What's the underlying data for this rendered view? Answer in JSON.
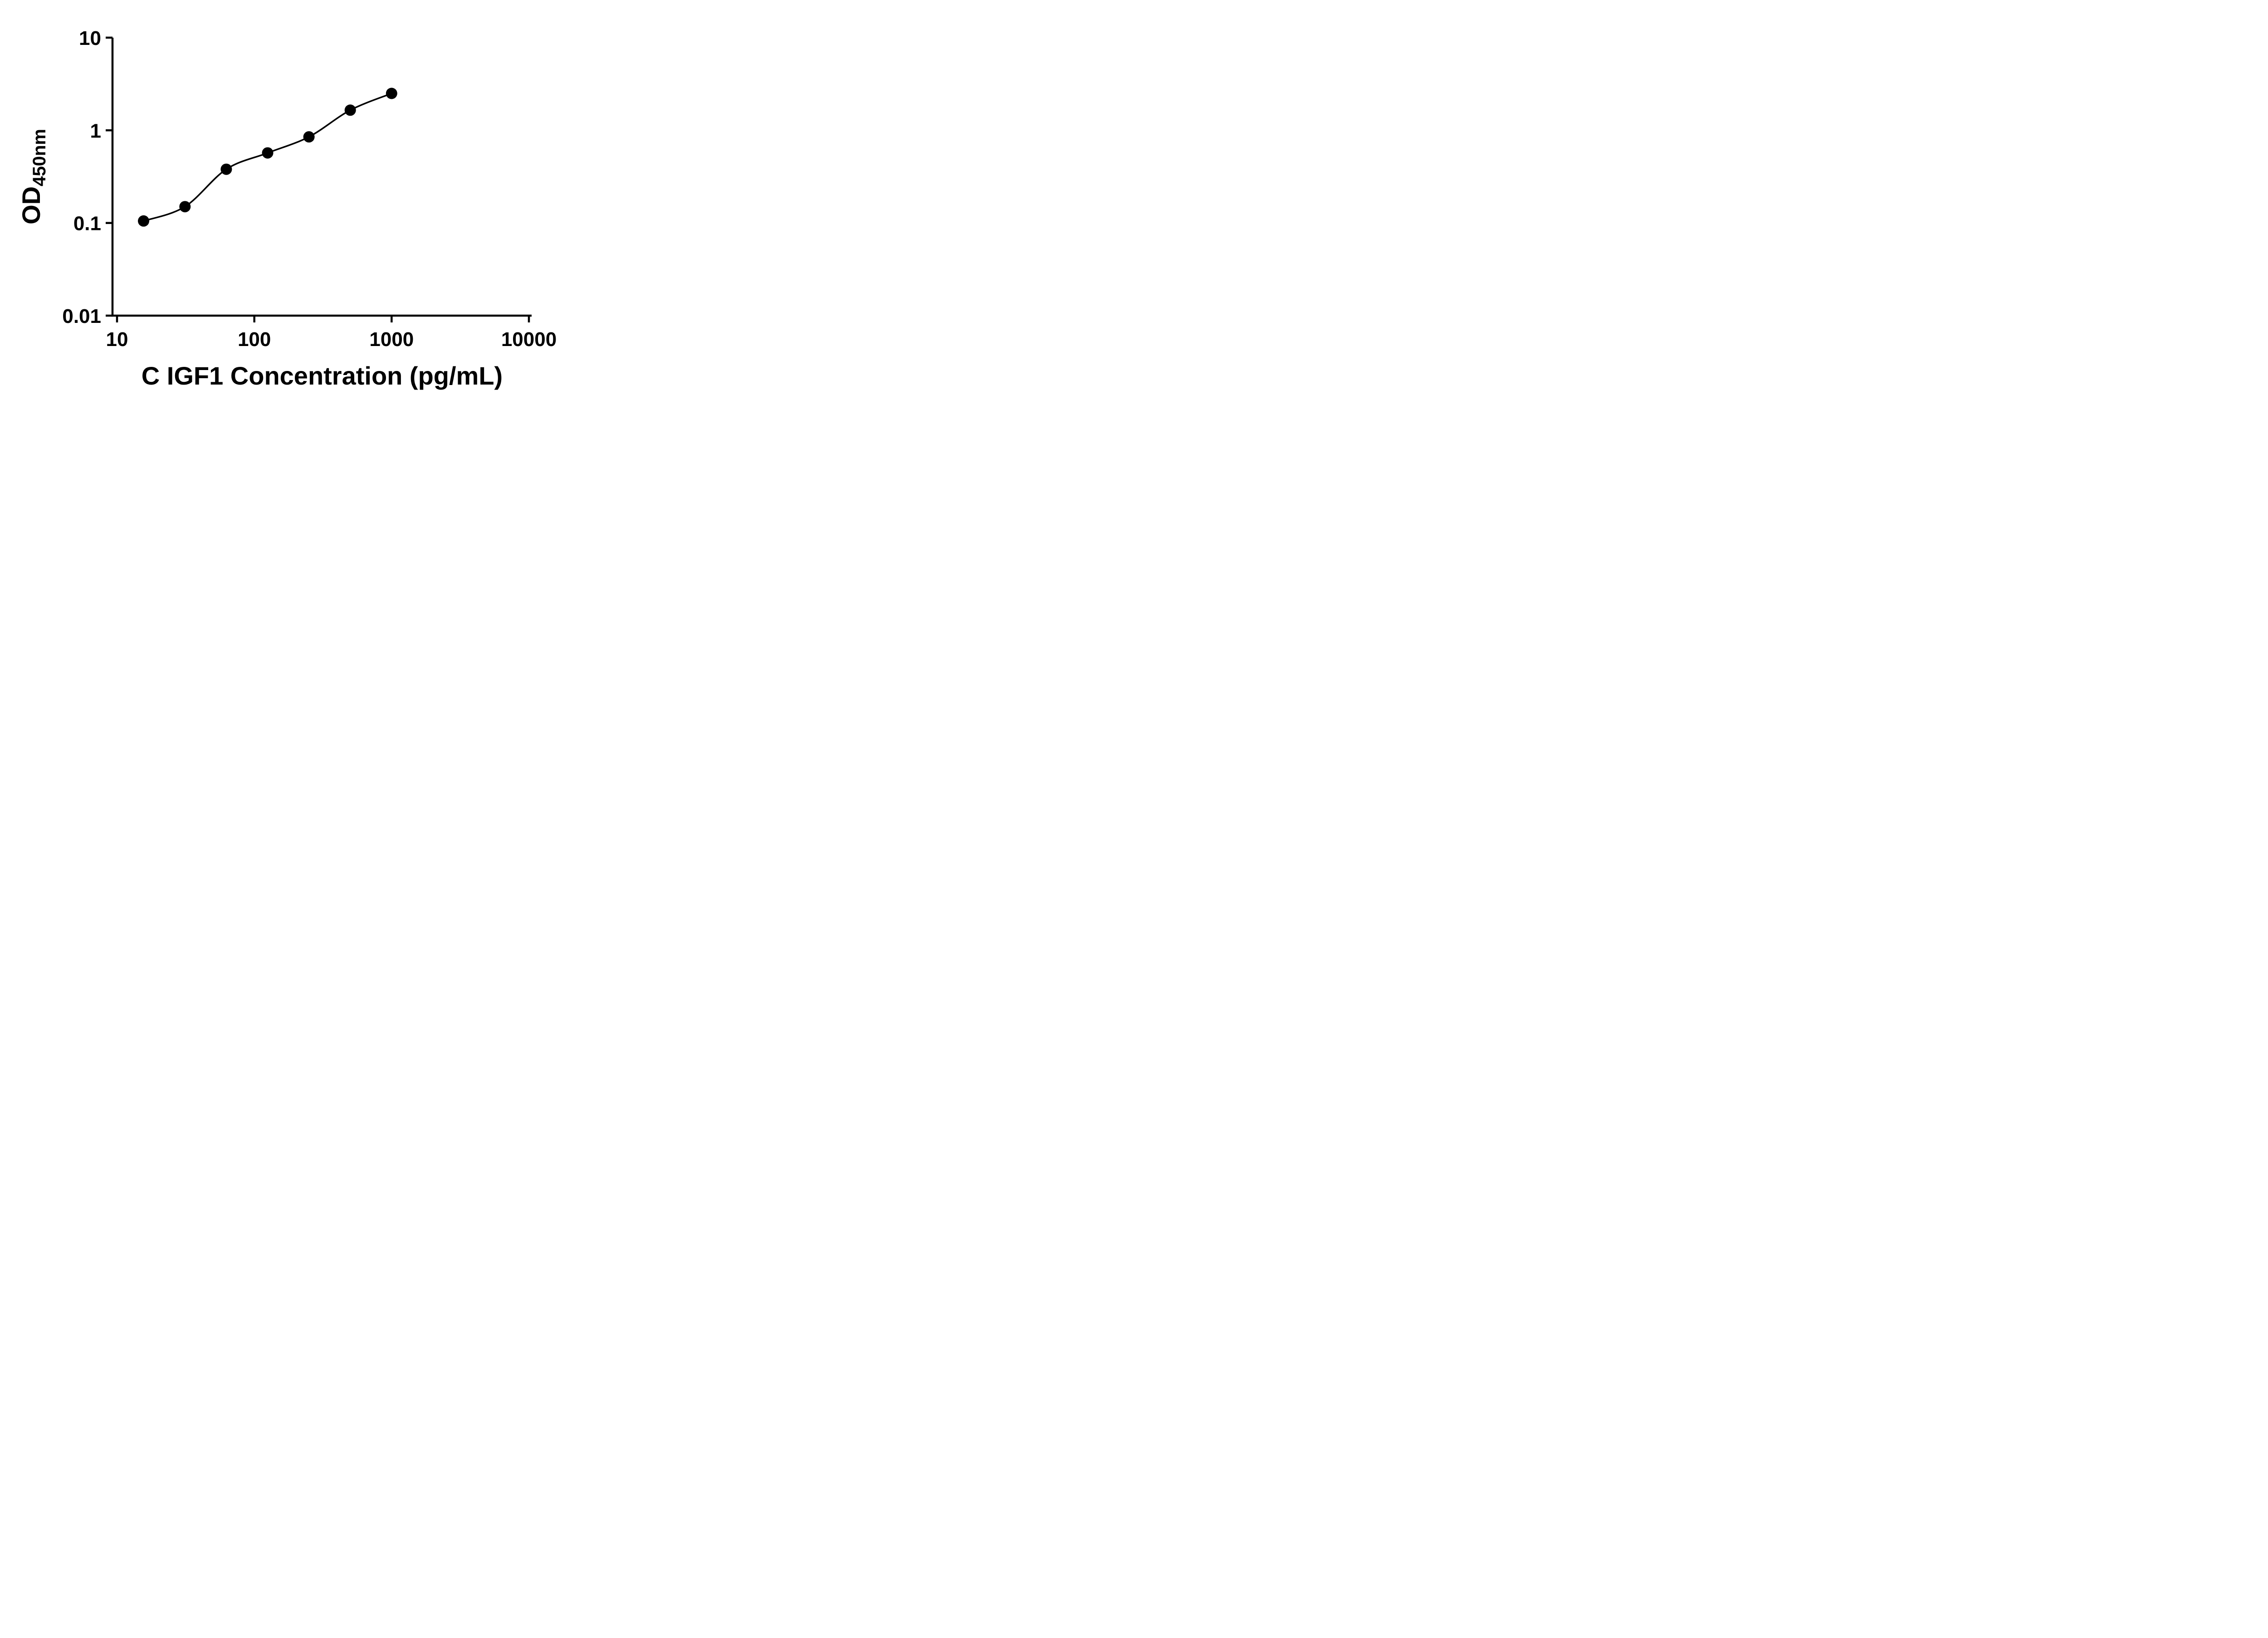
{
  "figure": {
    "background_color": "#ffffff",
    "ink_color": "#000000"
  },
  "chart_data": {
    "type": "scatter",
    "title": "",
    "xlabel": "C IGF1 Concentration (pg/mL)",
    "ylabel": {
      "text": "OD",
      "subscript": "450nm"
    },
    "x_scale": "log",
    "y_scale": "log",
    "xlim": [
      10,
      10000
    ],
    "ylim": [
      0.01,
      10
    ],
    "x_ticks": [
      {
        "value": 10,
        "label": "10"
      },
      {
        "value": 100,
        "label": "100"
      },
      {
        "value": 1000,
        "label": "1000"
      },
      {
        "value": 10000,
        "label": "10000"
      }
    ],
    "y_ticks": [
      {
        "value": 0.01,
        "label": "0.01"
      },
      {
        "value": 0.1,
        "label": "0.1"
      },
      {
        "value": 1,
        "label": "1"
      },
      {
        "value": 10,
        "label": "10"
      }
    ],
    "grid": false,
    "legend": "none",
    "series": [
      {
        "marker": "circle",
        "marker_color": "#000000",
        "line_color": "#000000",
        "fit_line": true,
        "points": [
          {
            "x": 15.6,
            "y": 0.105
          },
          {
            "x": 31.25,
            "y": 0.15
          },
          {
            "x": 62.5,
            "y": 0.38
          },
          {
            "x": 125,
            "y": 0.57
          },
          {
            "x": 250,
            "y": 0.85
          },
          {
            "x": 500,
            "y": 1.65
          },
          {
            "x": 1000,
            "y": 2.5
          }
        ]
      }
    ]
  }
}
